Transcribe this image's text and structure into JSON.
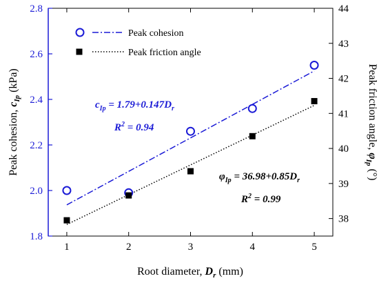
{
  "chart_data": {
    "type": "scatter",
    "x": [
      1,
      2,
      3,
      4,
      5
    ],
    "xlabel": {
      "text": "Root diameter, ",
      "var": "D",
      "sub": "r",
      "unit": " (mm)"
    },
    "xlim": [
      0.7,
      5.3
    ],
    "xticks": [
      "1",
      "2",
      "3",
      "4",
      "5"
    ],
    "ylabel_left": {
      "text": "Peak cohesion, ",
      "var": "c",
      "sub": "Ip",
      "unit": " (kPa)"
    },
    "ylim_left": [
      1.8,
      2.8
    ],
    "yticks_left": [
      "1.8",
      "2.0",
      "2.2",
      "2.4",
      "2.6",
      "2.8"
    ],
    "ylabel_right": {
      "text": "Peak friction angle, ",
      "var": "φ",
      "sub": "Ip",
      "unit": " (°)"
    },
    "ylim_right": [
      37.5,
      44
    ],
    "yticks_right": [
      "38",
      "39",
      "40",
      "41",
      "42",
      "43",
      "44"
    ],
    "legend_position": "top-left",
    "series": [
      {
        "name": "Peak cohesion",
        "axis": "left",
        "marker": "open-circle",
        "color": "#1a1ad6",
        "values": [
          2.0,
          1.99,
          2.26,
          2.36,
          2.55
        ],
        "fit": {
          "intercept": 1.79,
          "slope": 0.147,
          "style": "dash-dot"
        },
        "equation": {
          "lhs_var": "c",
          "lhs_sub": "Ip",
          "rhs": " = 1.79+0.147",
          "rhs_var": "D",
          "rhs_sub": "r"
        },
        "r2": {
          "label": "R",
          "sup": "2",
          "value": " = 0.94"
        }
      },
      {
        "name": "Peak friction angle",
        "axis": "right",
        "marker": "filled-square",
        "color": "#000000",
        "values": [
          37.95,
          38.66,
          39.35,
          40.35,
          41.35
        ],
        "fit": {
          "intercept": 36.98,
          "slope": 0.85,
          "style": "dotted"
        },
        "equation": {
          "lhs_var": "φ",
          "lhs_sub": "Ip",
          "rhs": " = 36.98+0.85",
          "rhs_var": "D",
          "rhs_sub": "r"
        },
        "r2": {
          "label": "R",
          "sup": "2",
          "value": " = 0.99"
        }
      }
    ]
  }
}
